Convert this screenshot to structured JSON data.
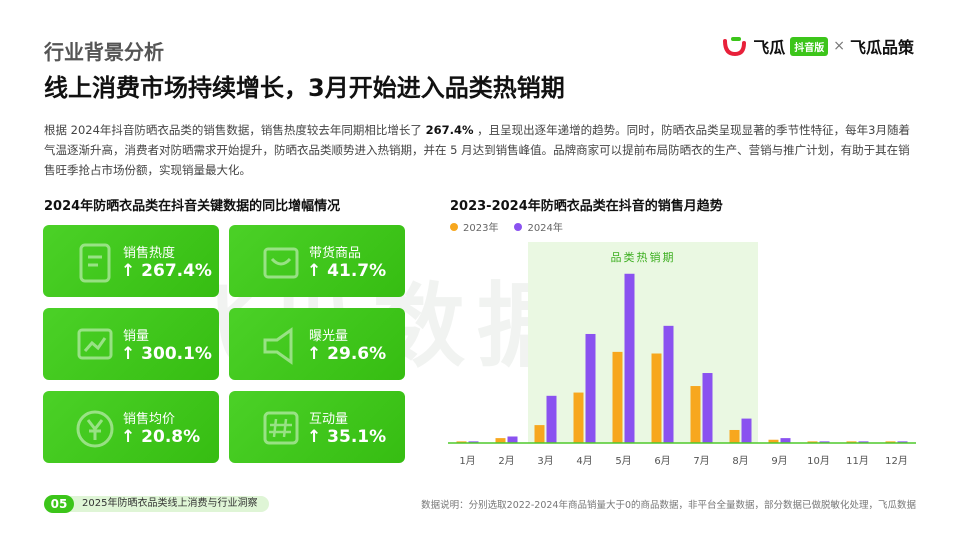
{
  "header": {
    "section_label": "行业背景分析",
    "title": "线上消费市场持续增长，3月开始进入品类热销期",
    "brand": {
      "name_left": "飞瓜",
      "badge": "抖音版",
      "separator": "×",
      "name_right": "飞瓜品策",
      "logo_color": "#e8203a"
    }
  },
  "intro": {
    "part1": "根据 2024年抖音防晒衣品类的销售数据，销售热度较去年同期相比增长了 ",
    "highlight": "267.4%",
    "part2": " ，且呈现出逐年递增的趋势。同时，防晒衣品类呈现显著的季节性特征，每年3月随着气温逐渐升高，消费者对防晒需求开始提升，防晒衣品类顺势进入热销期，并在 5 月达到销售峰值。品牌商家可以提前布局防晒衣的生产、营销与推广计划，有助于其在销售旺季抢占市场份额，实现销量最大化。"
  },
  "left_panel": {
    "title": "2024年防晒衣品类在抖音关键数据的同比增幅情况",
    "cards": [
      {
        "label": "销售热度",
        "value": "↑ 267.4%",
        "icon": "sales-heat-icon"
      },
      {
        "label": "带货商品",
        "value": "↑ 41.7%",
        "icon": "product-icon"
      },
      {
        "label": "销量",
        "value": "↑ 300.1%",
        "icon": "sales-volume-icon"
      },
      {
        "label": "曝光量",
        "value": "↑ 29.6%",
        "icon": "megaphone-icon"
      },
      {
        "label": "销售均价",
        "value": "↑ 20.8%",
        "icon": "yen-icon"
      },
      {
        "label": "互动量",
        "value": "↑ 35.1%",
        "icon": "hashtag-icon"
      }
    ]
  },
  "right_panel": {
    "title": "2023-2024年防晒衣品类在抖音的销售月趋势",
    "legend": [
      "2023年",
      "2024年"
    ],
    "highlight_label": "品类热销期"
  },
  "chart_data": {
    "type": "bar",
    "title": "2023-2024年防晒衣品类在抖音的销售月趋势",
    "xlabel": "",
    "ylabel": "",
    "categories": [
      "1月",
      "2月",
      "3月",
      "4月",
      "5月",
      "6月",
      "7月",
      "8月",
      "9月",
      "10月",
      "11月",
      "12月"
    ],
    "series": [
      {
        "name": "2023年",
        "color": "#f7a71e",
        "values": [
          1,
          3,
          11,
          31,
          56,
          55,
          35,
          8,
          2,
          1,
          1,
          1
        ]
      },
      {
        "name": "2024年",
        "color": "#8a52f0",
        "values": [
          1,
          4,
          29,
          67,
          104,
          72,
          43,
          15,
          3,
          1,
          1,
          1
        ]
      }
    ],
    "ylim": [
      0,
      110
    ],
    "highlight_range": [
      "3月",
      "8月"
    ],
    "grid": false,
    "legend_position": "top-left"
  },
  "footer": {
    "page_number": "05",
    "report_name": "2025年防晒衣品类线上消费与行业洞察",
    "note": "数据说明：分别选取2022-2024年商品销量大于0的商品数据，非平台全量数据，部分数据已做脱敏化处理，飞瓜数据"
  },
  "watermark": "飞瓜数据",
  "colors": {
    "accent": "#3cc51a",
    "bar_2023": "#f7a71e",
    "bar_2024": "#8a52f0",
    "highlight_bg": "#eaf8e2"
  }
}
